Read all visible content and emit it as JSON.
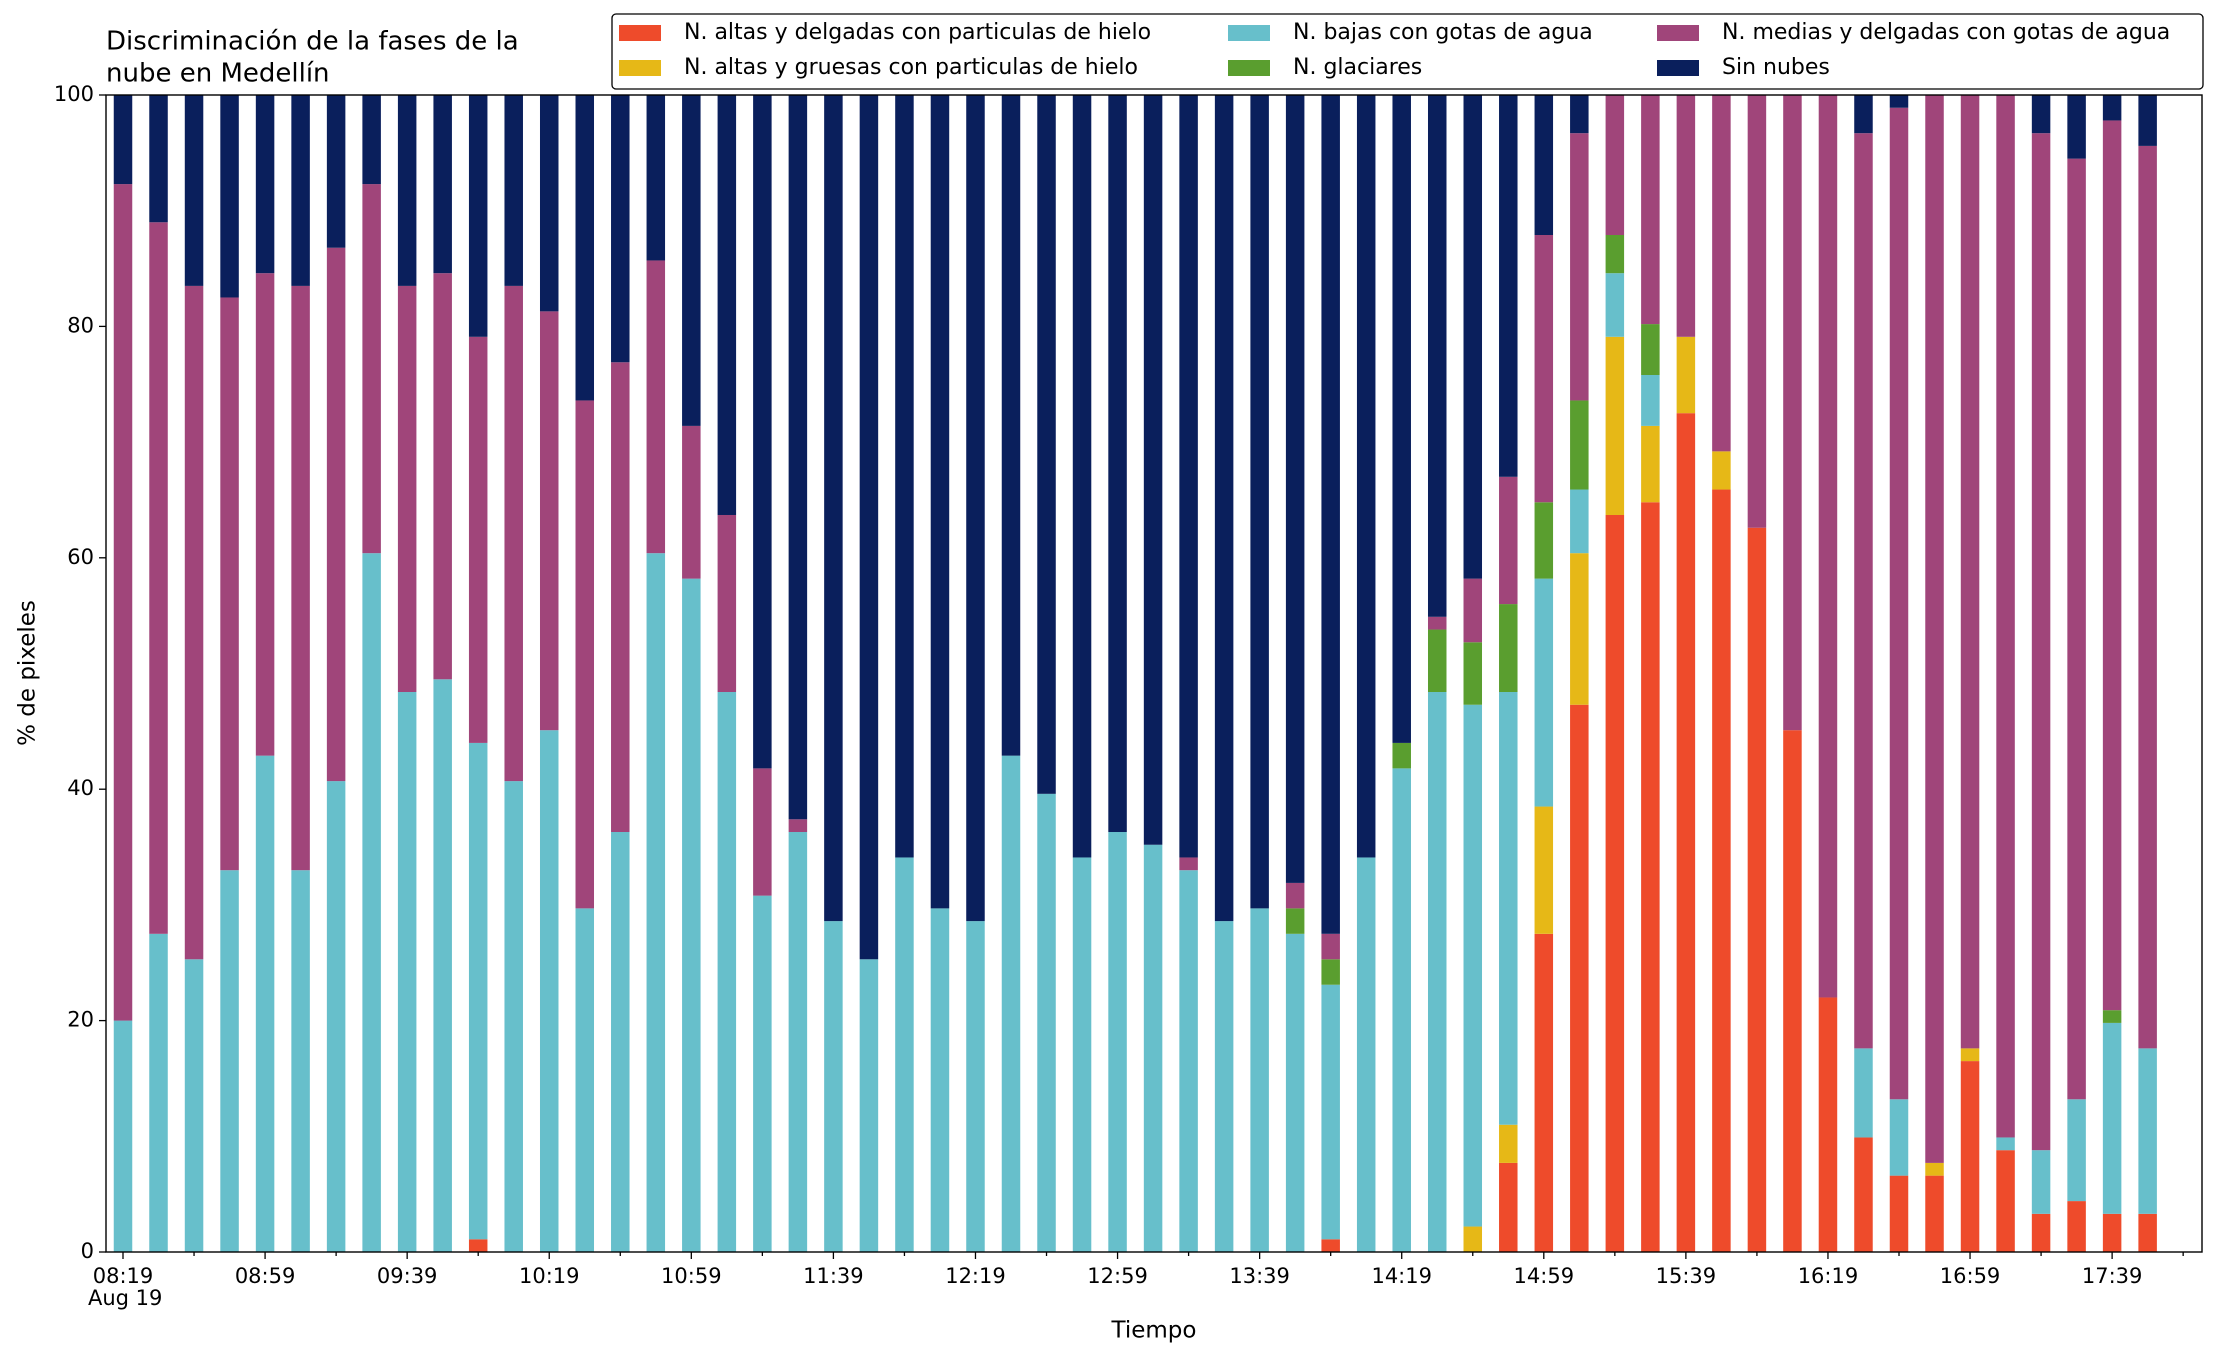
{
  "chart_data": {
    "type": "stacked_bar",
    "title_lines": [
      "Discriminación de la fases de la",
      "nube en Medellín"
    ],
    "x_label": "Tiempo",
    "y_label": "% de pixeles",
    "date_label": "Aug 19",
    "categories": [
      "08:19",
      null,
      null,
      null,
      "08:59",
      null,
      null,
      null,
      "09:39",
      null,
      null,
      null,
      "10:19",
      null,
      null,
      null,
      "10:59",
      null,
      null,
      null,
      "11:39",
      null,
      null,
      null,
      "12:19",
      null,
      null,
      null,
      "12:59",
      null,
      null,
      null,
      "13:39",
      null,
      null,
      null,
      "14:19",
      null,
      null,
      null,
      "14:59",
      null,
      null,
      null,
      "15:39",
      null,
      null,
      null,
      "16:19",
      null,
      null,
      null,
      "16:59",
      null,
      null,
      null,
      "17:39",
      null
    ],
    "ylim": [
      0,
      100
    ],
    "yticks": [
      0,
      20,
      40,
      60,
      80,
      100
    ],
    "legend": "upper right",
    "series": [
      {
        "name": "N. altas y delgadas con particulas de hielo",
        "color": "#ee4b2b",
        "values": [
          0,
          0,
          0,
          0,
          0,
          0,
          0,
          0,
          0,
          0,
          1.1,
          0,
          0,
          0,
          0,
          0,
          0,
          0,
          0,
          0,
          0,
          0,
          0,
          0,
          0,
          0,
          0,
          0,
          0,
          0,
          0,
          0,
          0,
          0,
          1.1,
          0,
          0,
          0,
          0,
          7.7,
          27.5,
          47.3,
          63.7,
          64.8,
          72.5,
          65.9,
          62.6,
          45.1,
          22,
          9.9,
          6.6,
          6.6,
          16.5,
          8.8,
          3.3,
          4.4,
          3.3,
          3.3
        ]
      },
      {
        "name": "N. altas y gruesas con particulas de hielo",
        "color": "#e6b817",
        "values": [
          0,
          0,
          0,
          0,
          0,
          0,
          0,
          0,
          0,
          0,
          0,
          0,
          0,
          0,
          0,
          0,
          0,
          0,
          0,
          0,
          0,
          0,
          0,
          0,
          0,
          0,
          0,
          0,
          0,
          0,
          0,
          0,
          0,
          0,
          0,
          0,
          0,
          0,
          2.2,
          3.3,
          11,
          13.1,
          15.4,
          6.6,
          6.6,
          3.3,
          0,
          0,
          0,
          0,
          0,
          1.1,
          1.1,
          0,
          0,
          0,
          0,
          0
        ]
      },
      {
        "name": "N. bajas con gotas de agua",
        "color": "#67bfcb",
        "values": [
          20,
          27.5,
          25.3,
          33,
          42.9,
          33,
          40.7,
          60.4,
          48.4,
          49.5,
          42.9,
          40.7,
          45.1,
          29.7,
          36.3,
          60.4,
          58.2,
          48.4,
          30.8,
          36.3,
          28.6,
          25.3,
          34.1,
          29.7,
          28.6,
          42.9,
          39.6,
          34.1,
          36.3,
          35.2,
          33,
          28.6,
          29.7,
          27.5,
          22,
          34.1,
          41.8,
          48.4,
          45.1,
          37.4,
          19.7,
          5.5,
          5.5,
          4.4,
          0,
          0,
          0,
          0,
          0,
          7.7,
          6.6,
          0,
          0,
          1.1,
          5.5,
          8.8,
          16.5,
          14.3
        ]
      },
      {
        "name": "N. glaciares",
        "color": "#5a9e2f",
        "values": [
          0,
          0,
          0,
          0,
          0,
          0,
          0,
          0,
          0,
          0,
          0,
          0,
          0,
          0,
          0,
          0,
          0,
          0,
          0,
          0,
          0,
          0,
          0,
          0,
          0,
          0,
          0,
          0,
          0,
          0,
          0,
          0,
          0,
          2.2,
          2.2,
          0,
          2.2,
          5.4,
          5.4,
          7.6,
          6.6,
          7.7,
          3.3,
          4.4,
          0,
          0,
          0,
          0,
          0,
          0,
          0,
          0,
          0,
          0,
          0,
          0,
          1.1,
          0
        ]
      },
      {
        "name": "N. medias y delgadas con gotas de agua",
        "color": "#a0457a",
        "values": [
          72.3,
          61.5,
          58.2,
          49.5,
          41.7,
          50.5,
          46.1,
          31.9,
          35.1,
          35.1,
          35.1,
          42.8,
          36.2,
          43.9,
          40.6,
          25.3,
          13.2,
          15.3,
          11,
          1.1,
          0,
          0,
          0,
          0,
          0,
          0,
          0,
          0,
          0,
          0,
          1.1,
          0,
          0,
          2.2,
          2.2,
          0,
          0,
          1.1,
          5.5,
          11,
          23.1,
          23.1,
          12.1,
          19.8,
          20.9,
          30.8,
          37.4,
          54.9,
          78,
          79.1,
          85.7,
          92.3,
          82.4,
          90.1,
          87.9,
          81.3,
          76.9,
          78
        ]
      },
      {
        "name": "Sin nubes",
        "color": "#0a1f5c",
        "values": [
          7.7,
          11,
          16.5,
          17.5,
          15.4,
          16.5,
          13.2,
          7.7,
          16.5,
          15.4,
          20.9,
          16.5,
          18.7,
          26.4,
          23.1,
          14.3,
          28.6,
          36.3,
          58.2,
          62.6,
          71.4,
          74.7,
          65.9,
          70.3,
          71.4,
          57.1,
          60.4,
          65.9,
          63.7,
          64.8,
          65.9,
          71.4,
          70.3,
          68.1,
          72.5,
          65.9,
          56,
          45.1,
          41.8,
          33,
          12.1,
          3.3,
          0,
          0,
          0,
          0,
          0,
          0,
          0,
          3.3,
          1.1,
          0,
          0,
          0,
          3.3,
          5.5,
          2.2,
          4.4
        ]
      }
    ]
  }
}
